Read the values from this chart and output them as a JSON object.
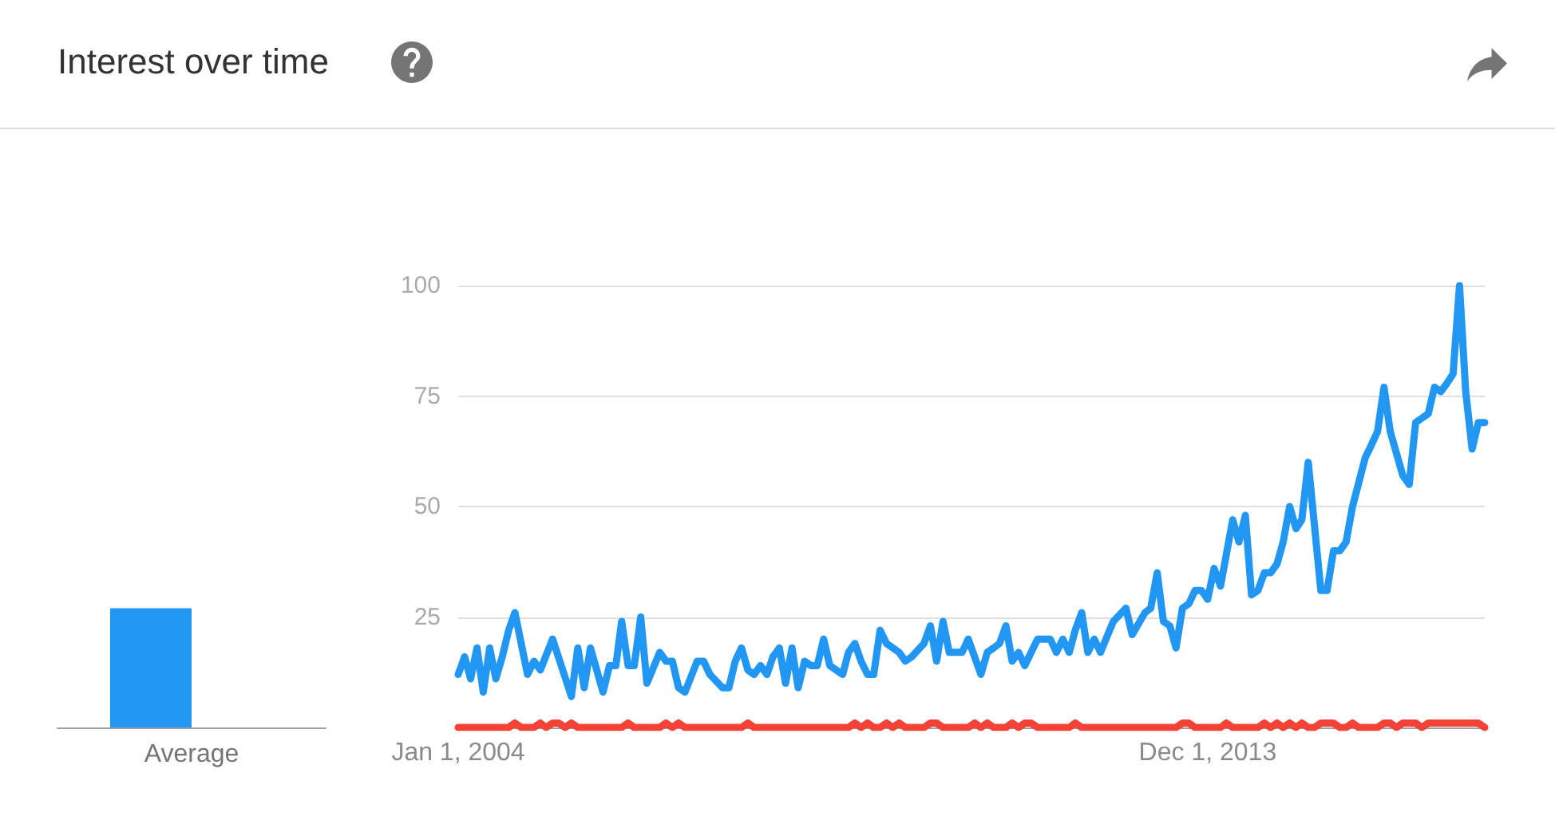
{
  "chart_data": [
    {
      "type": "bar",
      "title": "Interest over time",
      "categories": [
        "Average"
      ],
      "series": [
        {
          "color": "#2196f3",
          "values": [
            27
          ]
        },
        {
          "color": "#f44336",
          "values": [
            0
          ]
        }
      ],
      "ylim": [
        0,
        100
      ],
      "tick_labels": "x"
    },
    {
      "type": "line",
      "xlim": [
        "2004-01",
        "2017-08"
      ],
      "xticks": [
        {
          "value": "2004-01-01",
          "label": "Jan 1, 2004"
        },
        {
          "value": "2013-12-01",
          "label": "Dec 1, 2013"
        }
      ],
      "ylim": [
        0,
        100
      ],
      "yticks": [
        25,
        50,
        75,
        100
      ],
      "grid": "y",
      "marker": "none",
      "series": [
        {
          "color": "#2196f3",
          "x": [
            "2004-01",
            "2004-02",
            "2004-03",
            "2004-04",
            "2004-05",
            "2004-06",
            "2004-07",
            "2004-08",
            "2004-09",
            "2004-10",
            "2004-12",
            "2005-01",
            "2005-02",
            "2005-04",
            "2005-07",
            "2005-08",
            "2005-09",
            "2005-10",
            "2005-12",
            "2006-01",
            "2006-02",
            "2006-03",
            "2006-04",
            "2006-05",
            "2006-06",
            "2006-07",
            "2006-09",
            "2006-10",
            "2006-11",
            "2006-12",
            "2007-01",
            "2007-03",
            "2007-04",
            "2007-05",
            "2007-07",
            "2007-08",
            "2007-09",
            "2007-10",
            "2007-11",
            "2007-12",
            "2008-01",
            "2008-02",
            "2008-03",
            "2008-04",
            "2008-05",
            "2008-06",
            "2008-07",
            "2008-08",
            "2008-09",
            "2008-10",
            "2008-11",
            "2008-12",
            "2009-01",
            "2009-02",
            "2009-03",
            "2009-04",
            "2009-05",
            "2009-06",
            "2009-07",
            "2009-08",
            "2009-09",
            "2009-11",
            "2009-12",
            "2010-01",
            "2010-03",
            "2010-04",
            "2010-05",
            "2010-06",
            "2010-07",
            "2010-09",
            "2010-10",
            "2010-12",
            "2011-01",
            "2011-02",
            "2011-03",
            "2011-04",
            "2011-05",
            "2011-06",
            "2011-07",
            "2011-08",
            "2011-09",
            "2011-11",
            "2011-12",
            "2012-01",
            "2012-02",
            "2012-03",
            "2012-04",
            "2012-05",
            "2012-06",
            "2012-07",
            "2012-09",
            "2012-11",
            "2012-12",
            "2013-02",
            "2013-03",
            "2013-04",
            "2013-05",
            "2013-06",
            "2013-07",
            "2013-08",
            "2013-09",
            "2013-10",
            "2013-11",
            "2013-12",
            "2014-01",
            "2014-02",
            "2014-04",
            "2014-05",
            "2014-06",
            "2014-07",
            "2014-08",
            "2014-09",
            "2014-10",
            "2014-11",
            "2014-12",
            "2015-01",
            "2015-02",
            "2015-03",
            "2015-04",
            "2015-06",
            "2015-07",
            "2015-08",
            "2015-09",
            "2015-10",
            "2015-11",
            "2016-01",
            "2016-02",
            "2016-03",
            "2016-04",
            "2016-05",
            "2016-07",
            "2016-08",
            "2016-09",
            "2016-11",
            "2016-12",
            "2017-01",
            "2017-02",
            "2017-03",
            "2017-04",
            "2017-05",
            "2017-06",
            "2017-07",
            "2017-08"
          ],
          "values": [
            12,
            16,
            11,
            18,
            8,
            18,
            11,
            16,
            22,
            26,
            12,
            15,
            13,
            20,
            7,
            18,
            9,
            18,
            8,
            14,
            14,
            24,
            14,
            14,
            25,
            10,
            17,
            15,
            15,
            9,
            8,
            15,
            15,
            12,
            9,
            9,
            15,
            18,
            13,
            12,
            14,
            12,
            16,
            18,
            10,
            18,
            9,
            15,
            14,
            14,
            20,
            14,
            13,
            12,
            17,
            19,
            15,
            12,
            12,
            22,
            19,
            17,
            15,
            16,
            19,
            23,
            15,
            24,
            17,
            17,
            20,
            12,
            17,
            18,
            19,
            23,
            15,
            17,
            14,
            17,
            20,
            20,
            17,
            20,
            17,
            22,
            26,
            17,
            20,
            17,
            24,
            27,
            21,
            26,
            27,
            35,
            24,
            23,
            18,
            27,
            28,
            31,
            31,
            29,
            36,
            32,
            47,
            42,
            48,
            30,
            31,
            35,
            35,
            37,
            42,
            50,
            45,
            47,
            60,
            31,
            31,
            40,
            40,
            42,
            50,
            61,
            64,
            67,
            77,
            67,
            57,
            55,
            69,
            71,
            77,
            76,
            78,
            80,
            100,
            76,
            63,
            69,
            69
          ]
        },
        {
          "color": "#f44336",
          "x": [
            "2004-01",
            "2004-09",
            "2004-10",
            "2004-11",
            "2005-01",
            "2005-02",
            "2005-03",
            "2005-04",
            "2005-05",
            "2005-06",
            "2005-07",
            "2005-08",
            "2006-03",
            "2006-04",
            "2006-05",
            "2006-09",
            "2006-10",
            "2006-11",
            "2006-12",
            "2007-01",
            "2007-10",
            "2007-11",
            "2007-12",
            "2009-03",
            "2009-04",
            "2009-05",
            "2009-06",
            "2009-07",
            "2009-08",
            "2009-09",
            "2009-10",
            "2009-11",
            "2009-12",
            "2010-03",
            "2010-04",
            "2010-05",
            "2010-06",
            "2010-10",
            "2010-11",
            "2010-12",
            "2011-01",
            "2011-02",
            "2011-04",
            "2011-05",
            "2011-06",
            "2011-07",
            "2011-08",
            "2011-09",
            "2012-02",
            "2012-03",
            "2012-04",
            "2013-07",
            "2013-08",
            "2013-09",
            "2013-10",
            "2014-02",
            "2014-03",
            "2014-04",
            "2014-08",
            "2014-09",
            "2014-10",
            "2014-11",
            "2014-12",
            "2015-01",
            "2015-02",
            "2015-03",
            "2015-04",
            "2015-05",
            "2015-06",
            "2015-07",
            "2015-08",
            "2015-09",
            "2015-10",
            "2015-11",
            "2015-12",
            "2016-03",
            "2016-04",
            "2016-05",
            "2016-06",
            "2016-07",
            "2016-08",
            "2016-09",
            "2016-10",
            "2016-11",
            "2016-12",
            "2017-01",
            "2017-02",
            "2017-03",
            "2017-04",
            "2017-05",
            "2017-06",
            "2017-07",
            "2017-08"
          ],
          "values": [
            0,
            0,
            1,
            0,
            0,
            1,
            0,
            1,
            1,
            0,
            1,
            0,
            0,
            1,
            0,
            0,
            1,
            0,
            1,
            0,
            0,
            1,
            0,
            0,
            1,
            0,
            1,
            0,
            0,
            1,
            0,
            1,
            0,
            0,
            1,
            1,
            0,
            0,
            1,
            0,
            1,
            0,
            0,
            1,
            0,
            1,
            1,
            0,
            0,
            1,
            0,
            0,
            1,
            1,
            0,
            0,
            1,
            0,
            0,
            1,
            0,
            1,
            0,
            1,
            0,
            1,
            0,
            0,
            1,
            1,
            1,
            0,
            0,
            1,
            0,
            0,
            1,
            1,
            0,
            1,
            1,
            1,
            0,
            1,
            1,
            1,
            1,
            1,
            1,
            1,
            1,
            1,
            0
          ]
        }
      ]
    }
  ]
}
